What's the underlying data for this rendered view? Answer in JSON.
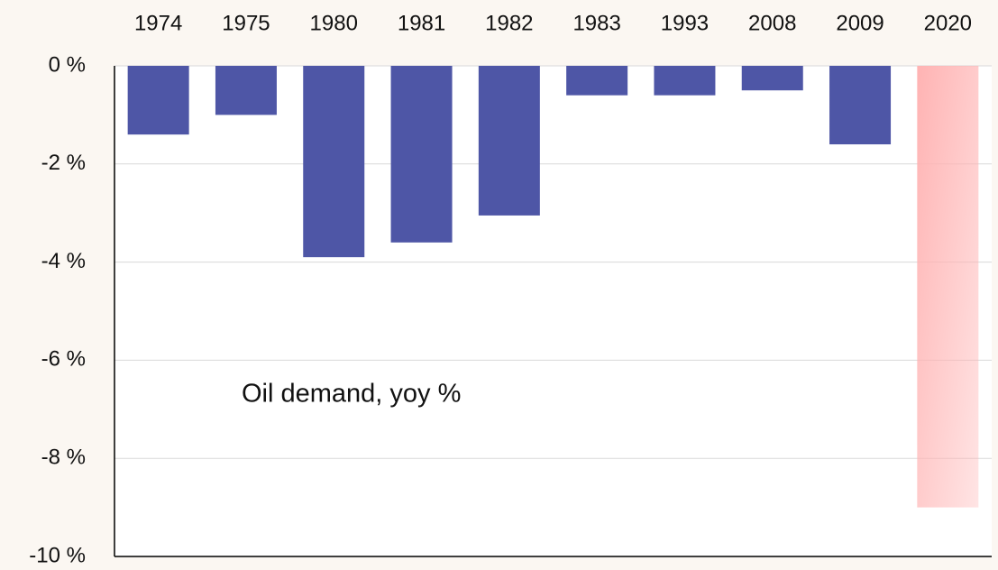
{
  "chart_data": {
    "type": "bar",
    "annotation": "Oil demand, yoy %",
    "categories": [
      "1974",
      "1975",
      "1980",
      "1981",
      "1982",
      "1983",
      "1993",
      "2008",
      "2009",
      "2020"
    ],
    "values": [
      -1.4,
      -1.0,
      -3.9,
      -3.6,
      -3.05,
      -0.6,
      -0.6,
      -0.5,
      -1.6,
      -9.0
    ],
    "colors": [
      "#4e56a6",
      "#4e56a6",
      "#4e56a6",
      "#4e56a6",
      "#4e56a6",
      "#4e56a6",
      "#4e56a6",
      "#4e56a6",
      "#4e56a6",
      "#ffb3b3"
    ],
    "ylim": [
      -10,
      0
    ],
    "yticks": [
      {
        "value": 0,
        "label": "0 %"
      },
      {
        "value": -2,
        "label": "-2 %"
      },
      {
        "value": -4,
        "label": "-4 %"
      },
      {
        "value": -6,
        "label": "-6 %"
      },
      {
        "value": -8,
        "label": "-8 %"
      },
      {
        "value": -10,
        "label": "-10 %"
      }
    ],
    "grid": true
  }
}
